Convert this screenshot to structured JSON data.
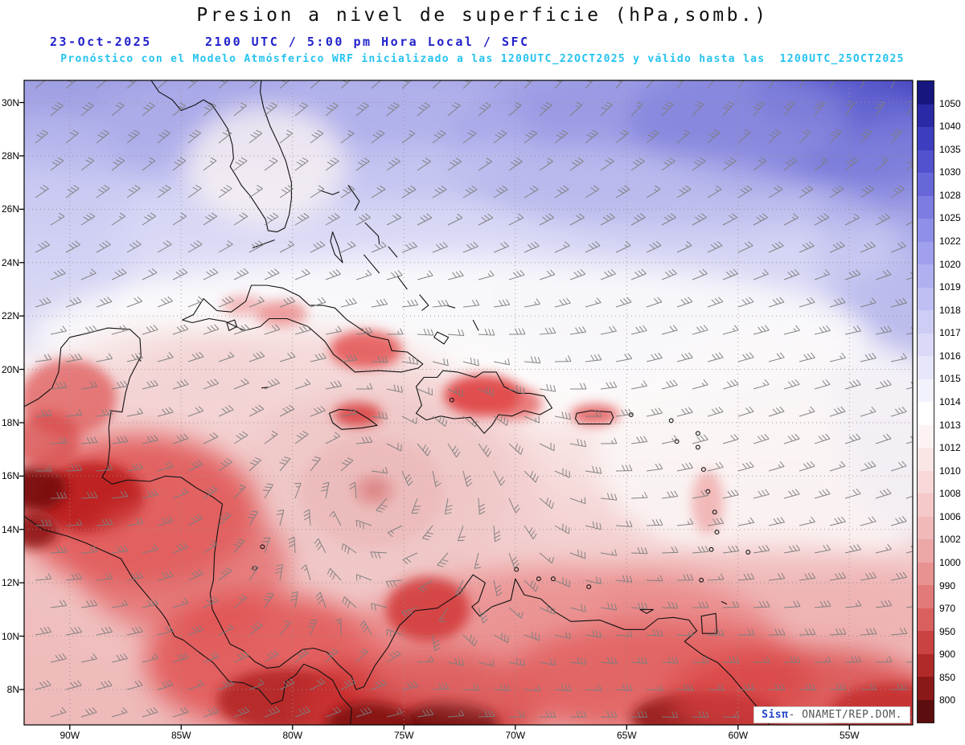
{
  "header": {
    "title": "Presion a nivel de superficie (hPa,somb.)",
    "date": "23-Oct-2025",
    "time": "2100 UTC / 5:00 pm Hora Local / SFC",
    "forecast": "Pronóstico con el Modelo Atmósferico WRF inicializado a las 1200UTC_22OCT2025 y válido hasta las  1200UTC_25OCT2025"
  },
  "axes": {
    "lat_texts": [
      "30N",
      "28N",
      "26N",
      "24N",
      "22N",
      "20N",
      "18N",
      "16N",
      "14N",
      "12N",
      "10N",
      "8N"
    ],
    "lat_values": [
      30,
      28,
      26,
      24,
      22,
      20,
      18,
      16,
      14,
      12,
      10,
      8
    ],
    "lon_texts": [
      "90W",
      "85W",
      "80W",
      "75W",
      "70W",
      "65W",
      "60W",
      "55W"
    ],
    "lon_values": [
      90,
      85,
      80,
      75,
      70,
      65,
      60,
      55
    ]
  },
  "colorbar": {
    "labels": [
      "1050",
      "1040",
      "1035",
      "1030",
      "1028",
      "1025",
      "1022",
      "1020",
      "1019",
      "1018",
      "1017",
      "1016",
      "1015",
      "1014",
      "1013",
      "1012",
      "1010",
      "1008",
      "1006",
      "1002",
      "1000",
      "990",
      "970",
      "950",
      "900",
      "850",
      "800"
    ],
    "colors": [
      "#16167e",
      "#2a2aa6",
      "#3d3dc0",
      "#5252cf",
      "#6767da",
      "#7c7ce2",
      "#8f8fe9",
      "#a0a0ee",
      "#b0b0f1",
      "#bfbff4",
      "#cdcdf6",
      "#dadaf8",
      "#e7e7fb",
      "#f2f2fd",
      "#ffffff",
      "#fdf3f3",
      "#fbe6e6",
      "#f8d8d8",
      "#f5c9c9",
      "#f1b9b9",
      "#eda7a7",
      "#e89292",
      "#e27a7a",
      "#da6060",
      "#cb4242",
      "#b02a2a",
      "#8a1818",
      "#5c0d0d"
    ]
  },
  "attribution": {
    "brand": "Sisπ",
    "text": "- ONAMET/REP.DOM."
  },
  "chart_data": {
    "type": "heatmap",
    "title": "Presion a nivel de superficie (hPa,somb.)",
    "variable": "surface pressure (shaded)",
    "units": "hPa",
    "valid_date": "23-Oct-2025",
    "valid_time": "2100 UTC / 5:00 pm Hora Local / SFC",
    "level": "SFC",
    "model": "WRF",
    "initialized": "1200UTC_22OCT2025",
    "valid_until": "1200UTC_25OCT2025",
    "lat_ticks_n": [
      30,
      28,
      26,
      24,
      22,
      20,
      18,
      16,
      14,
      12,
      10,
      8
    ],
    "lon_ticks_w": [
      90,
      85,
      80,
      75,
      70,
      65,
      60,
      55
    ],
    "colorbar_levels_hpa": [
      800,
      850,
      900,
      950,
      970,
      990,
      1000,
      1002,
      1006,
      1008,
      1010,
      1012,
      1013,
      1014,
      1015,
      1016,
      1017,
      1018,
      1019,
      1020,
      1022,
      1025,
      1028,
      1030,
      1035,
      1040,
      1050
    ],
    "features": [
      {
        "feature": "tropical cyclone circulation with wind barbs curving around center",
        "approx_position": "15-16N 76-78W (central Caribbean)",
        "shading": "~1002-1008 hPa"
      },
      {
        "feature": "subtropical high pressure",
        "approx_position": "northeast corner of domain (western Atlantic)",
        "shading": ">1022 hPa (dark blue)"
      },
      {
        "feature": "low pressure over land",
        "approx_position": "Central America, Colombia and Venezuela",
        "shading": "<1000 hPa (dark red)"
      },
      {
        "feature": "near-normal pressure band",
        "approx_position": "Cuba / Bahamas / 20-24N",
        "shading": "1013-1015 hPa (white)"
      }
    ],
    "overlays": [
      "wind barbs (gray)",
      "coastlines (black)",
      "dotted lat-lon grid"
    ],
    "legend_position": "right vertical colorbar",
    "grid": true
  }
}
